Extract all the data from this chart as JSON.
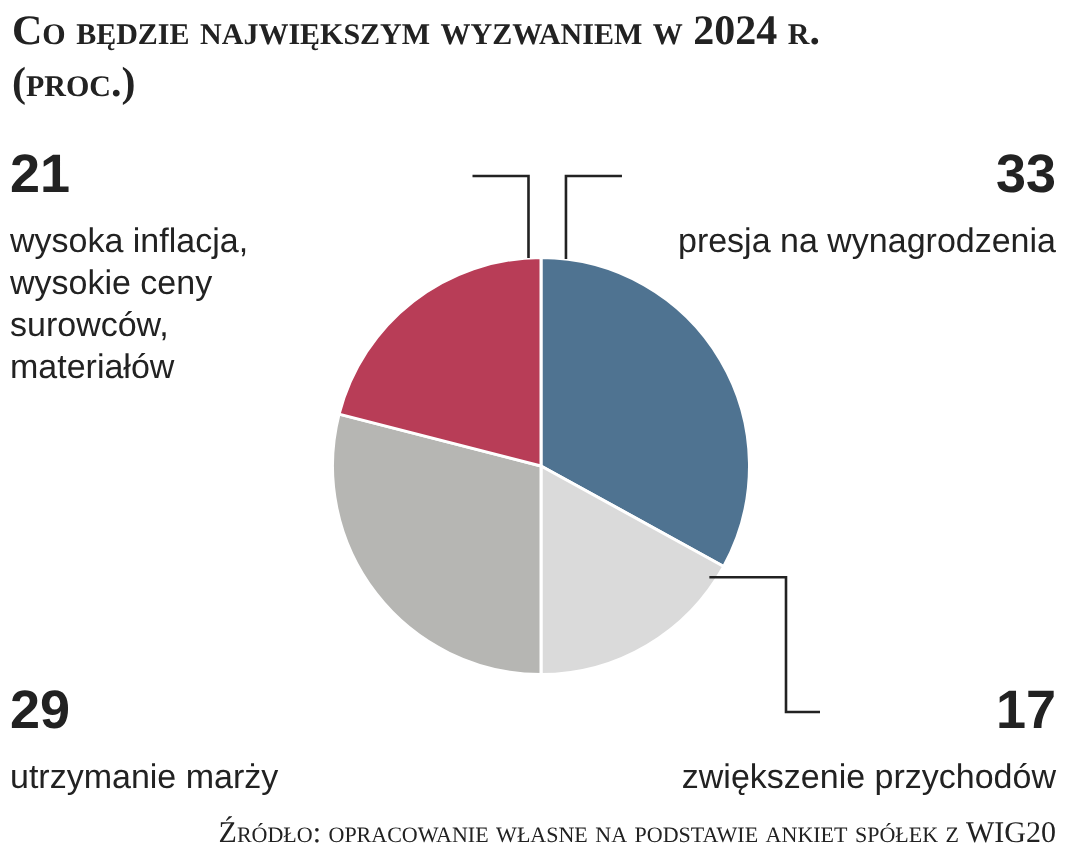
{
  "chart_data": {
    "type": "pie",
    "title": "Co będzie największym wyzwaniem w 2024 r. (proc.)",
    "categories": [
      "presja na wynagrodzenia",
      "zwiększenie przychodów",
      "utrzymanie marży",
      "wysoka inflacja, wysokie ceny surowców, materiałów"
    ],
    "values": [
      33,
      17,
      29,
      21
    ],
    "colors": [
      "#4f7391",
      "#dadada",
      "#b6b6b3",
      "#b83d57"
    ],
    "data_labels": true,
    "annotations": [
      "Źródło: opracowanie własne na podstawie ankiet spółek z WIG20"
    ]
  }
}
